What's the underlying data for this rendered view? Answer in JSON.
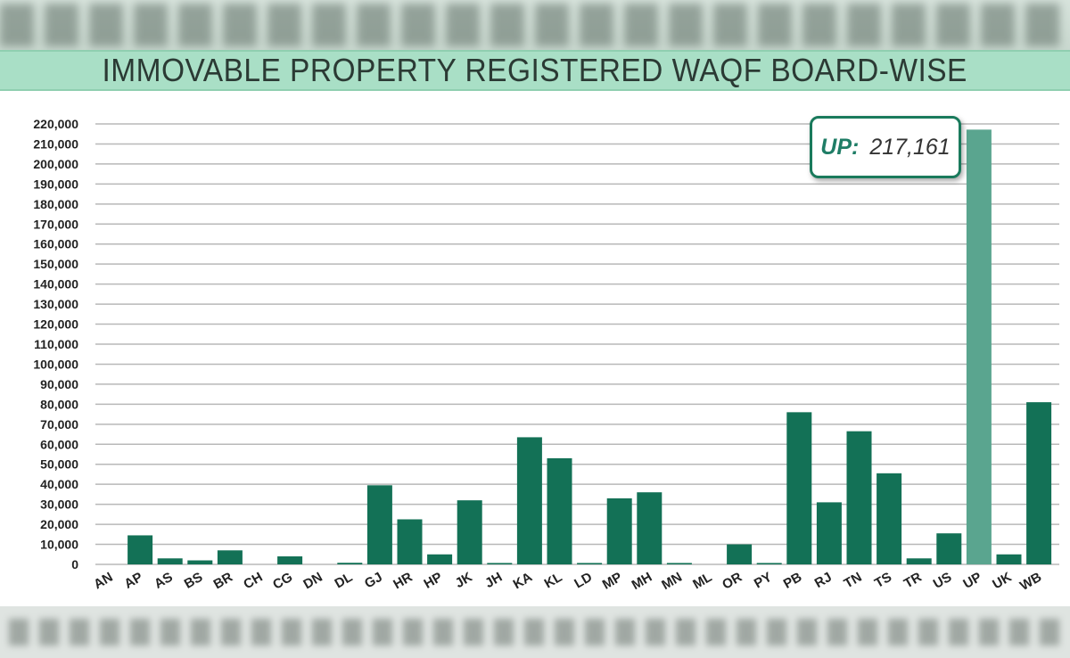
{
  "colors": {
    "bar": "#137156",
    "bar_highlight": "#5aa58f",
    "title_bg": "#a9dfc6",
    "grid": "#b8b8b8"
  },
  "chart_data": {
    "type": "bar",
    "title": "IMMOVABLE PROPERTY REGISTERED WAQF BOARD-WISE",
    "xlabel": "",
    "ylabel": "",
    "ylim": [
      0,
      220000
    ],
    "yticks": [
      "0",
      "10,000",
      "20,000",
      "30,000",
      "40,000",
      "50,000",
      "60,000",
      "70,000",
      "80,000",
      "90,000",
      "100,000",
      "110,000",
      "120,000",
      "130,000",
      "140,000",
      "150,000",
      "160,000",
      "170,000",
      "180,000",
      "190,000",
      "200,000",
      "210,000",
      "220,000"
    ],
    "grid": true,
    "legend": "none",
    "categories": [
      "AN",
      "AP",
      "AS",
      "BS",
      "BR",
      "CH",
      "CG",
      "DN",
      "DL",
      "GJ",
      "HR",
      "HP",
      "JK",
      "JH",
      "KA",
      "KL",
      "LD",
      "MP",
      "MH",
      "MN",
      "ML",
      "OR",
      "PY",
      "PB",
      "RJ",
      "TN",
      "TS",
      "TR",
      "US",
      "UP",
      "UK",
      "WB"
    ],
    "values": [
      0,
      14500,
      3000,
      2000,
      7000,
      0,
      4000,
      0,
      800,
      39500,
      22500,
      5000,
      32000,
      700,
      63500,
      53000,
      700,
      33000,
      36000,
      700,
      0,
      10000,
      700,
      76000,
      31000,
      66500,
      45500,
      3000,
      15500,
      217161,
      5000,
      81000
    ],
    "highlight": {
      "category": "UP",
      "tooltip_label": "UP:",
      "tooltip_value": "217,161"
    }
  }
}
